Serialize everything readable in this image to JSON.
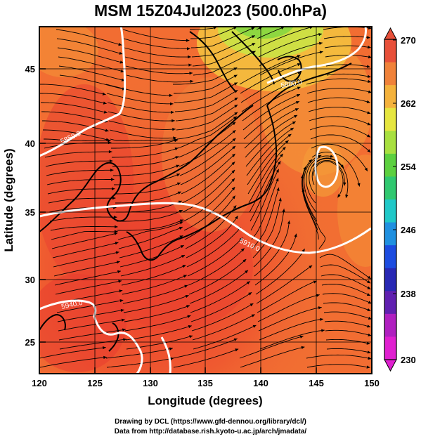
{
  "title": "MSM 15Z04Jul2023 (500.0hPa)",
  "xlabel": "Longitude (degrees)",
  "ylabel": "Latitude  (degrees)",
  "x_ticks": [
    "120",
    "125",
    "130",
    "135",
    "140",
    "145",
    "150"
  ],
  "y_ticks": [
    "25",
    "30",
    "35",
    "40",
    "45"
  ],
  "colorbar": {
    "ticks": [
      "270",
      "262",
      "254",
      "246",
      "238",
      "230"
    ],
    "colors_top_to_bottom": [
      "#e8503a",
      "#f0823a",
      "#f4b23c",
      "#e6e640",
      "#a8e040",
      "#5cd040",
      "#30c870",
      "#20c8c8",
      "#2090e0",
      "#1c4ce0",
      "#2828b4",
      "#6020b0",
      "#b020c0",
      "#e020d0"
    ]
  },
  "contour_labels": [
    "5940.0",
    "5850.0",
    "5880.0",
    "5910.0",
    "5910.0",
    "5940.0"
  ],
  "credits": {
    "line1": "Drawing by DCL (https://www.gfd-dennou.org/library/dcl/)",
    "line2": "Data from http://database.rish.kyoto-u.ac.jp/arch/jmadata/"
  },
  "chart_data": {
    "type": "map",
    "title": "MSM 15Z04Jul2023 (500.0hPa)",
    "xlabel": "Longitude (degrees)",
    "ylabel": "Latitude  (degrees)",
    "xlim": [
      120,
      150
    ],
    "ylim": [
      22.4,
      47.6
    ],
    "x_ticks": [
      120,
      125,
      130,
      135,
      140,
      145,
      150
    ],
    "y_ticks": [
      25,
      30,
      35,
      40,
      45
    ],
    "colorbar_range": [
      230,
      270
    ],
    "colorbar_ticks": [
      270,
      262,
      254,
      246,
      238,
      230
    ],
    "fields": "temperature shading (K), geopotential height contours (white), wind streamlines (black)"
  }
}
